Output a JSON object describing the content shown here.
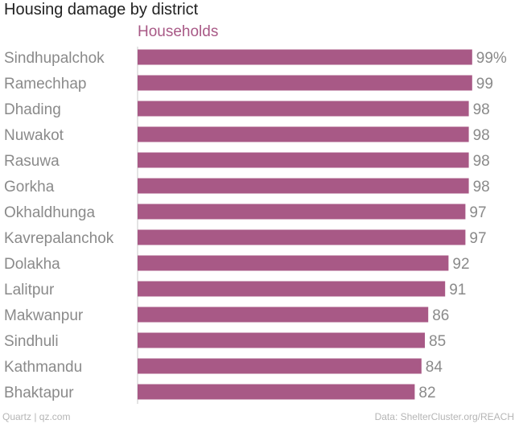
{
  "chart_data": {
    "type": "bar",
    "orientation": "horizontal",
    "title": "Housing damage by district",
    "series": [
      {
        "name": "Households",
        "color": "#a85986",
        "values": [
          99,
          99,
          98,
          98,
          98,
          98,
          97,
          97,
          92,
          91,
          86,
          85,
          84,
          82
        ]
      }
    ],
    "categories": [
      "Sindhupalchok",
      "Ramechhap",
      "Dhading",
      "Nuwakot",
      "Rasuwa",
      "Gorkha",
      "Okhaldhunga",
      "Kavrepalanchok",
      "Dolakha",
      "Lalitpur",
      "Makwanpur",
      "Sindhuli",
      "Kathmandu",
      "Bhaktapur"
    ],
    "value_labels": [
      "99%",
      "99",
      "98",
      "98",
      "98",
      "98",
      "97",
      "97",
      "92",
      "91",
      "86",
      "85",
      "84",
      "82"
    ],
    "xlim": [
      0,
      100
    ],
    "grid": false,
    "legend": "top",
    "source": "Data: ShelterCluster.org/REACH",
    "credit": "Quartz | qz.com"
  }
}
